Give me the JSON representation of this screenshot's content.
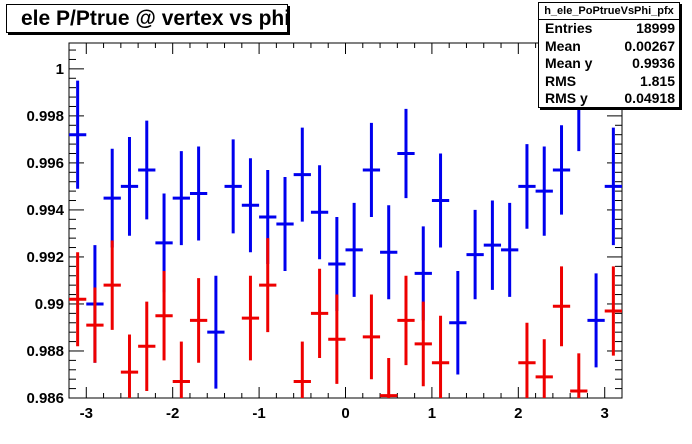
{
  "stats": {
    "name": "h_ele_PoPtrueVsPhi_pfx",
    "rows": [
      {
        "label": "Entries",
        "value": "18999"
      },
      {
        "label": "Mean",
        "value": "0.00267"
      },
      {
        "label": "Mean y",
        "value": "0.9936"
      },
      {
        "label": "RMS",
        "value": "1.815"
      },
      {
        "label": "RMS y",
        "value": "0.04918"
      }
    ]
  },
  "chart_data": {
    "type": "scatter",
    "title": "ele P/Ptrue @ vertex vs phi",
    "xlabel": "",
    "ylabel": "",
    "xlim": [
      -3.2,
      3.2
    ],
    "ylim": [
      0.986,
      1.0011
    ],
    "x_ticks": [
      -3,
      -2,
      -1,
      0,
      1,
      2,
      3
    ],
    "x_tick_labels": [
      "-3",
      "-2",
      "-1",
      "0",
      "1",
      "2",
      "3"
    ],
    "y_ticks": [
      0.986,
      0.988,
      0.99,
      0.992,
      0.994,
      0.996,
      0.998,
      1.0
    ],
    "y_tick_labels": [
      "0.986",
      "0.988",
      "0.99",
      "0.992",
      "0.994",
      "0.996",
      "0.998",
      "1"
    ],
    "grid": false,
    "legend": "none",
    "x_half_width": 0.1,
    "series": [
      {
        "color": "#0000ee",
        "points": [
          {
            "x": -3.1,
            "y": 0.9972,
            "lo": 0.9949,
            "hi": 0.9995
          },
          {
            "x": -2.9,
            "y": 0.99,
            "lo": 0.9875,
            "hi": 0.9925
          },
          {
            "x": -2.7,
            "y": 0.9945,
            "lo": 0.9924,
            "hi": 0.9966
          },
          {
            "x": -2.5,
            "y": 0.995,
            "lo": 0.9929,
            "hi": 0.9971
          },
          {
            "x": -2.3,
            "y": 0.9957,
            "lo": 0.9936,
            "hi": 0.9978
          },
          {
            "x": -2.1,
            "y": 0.9926,
            "lo": 0.9905,
            "hi": 0.9947
          },
          {
            "x": -1.9,
            "y": 0.9945,
            "lo": 0.9925,
            "hi": 0.9965
          },
          {
            "x": -1.7,
            "y": 0.9947,
            "lo": 0.9927,
            "hi": 0.9967
          },
          {
            "x": -1.5,
            "y": 0.9888,
            "lo": 0.9864,
            "hi": 0.9912
          },
          {
            "x": -1.3,
            "y": 0.995,
            "lo": 0.993,
            "hi": 0.997
          },
          {
            "x": -1.1,
            "y": 0.9942,
            "lo": 0.9922,
            "hi": 0.9962
          },
          {
            "x": -0.9,
            "y": 0.9937,
            "lo": 0.9917,
            "hi": 0.9957
          },
          {
            "x": -0.7,
            "y": 0.9934,
            "lo": 0.9914,
            "hi": 0.9954
          },
          {
            "x": -0.5,
            "y": 0.9955,
            "lo": 0.9935,
            "hi": 0.9975
          },
          {
            "x": -0.3,
            "y": 0.9939,
            "lo": 0.9919,
            "hi": 0.9959
          },
          {
            "x": -0.1,
            "y": 0.9917,
            "lo": 0.9897,
            "hi": 0.9937
          },
          {
            "x": 0.1,
            "y": 0.9923,
            "lo": 0.9903,
            "hi": 0.9943
          },
          {
            "x": 0.3,
            "y": 0.9957,
            "lo": 0.9937,
            "hi": 0.9977
          },
          {
            "x": 0.5,
            "y": 0.9922,
            "lo": 0.9902,
            "hi": 0.9942
          },
          {
            "x": 0.7,
            "y": 0.9964,
            "lo": 0.9945,
            "hi": 0.9983
          },
          {
            "x": 0.9,
            "y": 0.9913,
            "lo": 0.9893,
            "hi": 0.9933
          },
          {
            "x": 1.1,
            "y": 0.9944,
            "lo": 0.9924,
            "hi": 0.9964
          },
          {
            "x": 1.3,
            "y": 0.9892,
            "lo": 0.987,
            "hi": 0.9914
          },
          {
            "x": 1.5,
            "y": 0.9921,
            "lo": 0.9902,
            "hi": 0.994
          },
          {
            "x": 1.7,
            "y": 0.9925,
            "lo": 0.9906,
            "hi": 0.9944
          },
          {
            "x": 1.9,
            "y": 0.9923,
            "lo": 0.9903,
            "hi": 0.9943
          },
          {
            "x": 2.1,
            "y": 0.995,
            "lo": 0.9932,
            "hi": 0.9968
          },
          {
            "x": 2.3,
            "y": 0.9948,
            "lo": 0.9929,
            "hi": 0.9967
          },
          {
            "x": 2.5,
            "y": 0.9957,
            "lo": 0.9938,
            "hi": 0.9976
          },
          {
            "x": 2.7,
            "y": 0.9985,
            "lo": 0.9965,
            "hi": 1.0005
          },
          {
            "x": 2.9,
            "y": 0.9893,
            "lo": 0.9873,
            "hi": 0.9913
          },
          {
            "x": 3.1,
            "y": 0.995,
            "lo": 0.9925,
            "hi": 0.9975
          }
        ]
      },
      {
        "color": "#ee0000",
        "points": [
          {
            "x": -3.1,
            "y": 0.9902,
            "lo": 0.9882,
            "hi": 0.9922
          },
          {
            "x": -2.9,
            "y": 0.9891,
            "lo": 0.9875,
            "hi": 0.9907
          },
          {
            "x": -2.7,
            "y": 0.9908,
            "lo": 0.9889,
            "hi": 0.9927
          },
          {
            "x": -2.5,
            "y": 0.9871,
            "lo": 0.9855,
            "hi": 0.9887
          },
          {
            "x": -2.3,
            "y": 0.9882,
            "lo": 0.9863,
            "hi": 0.9901
          },
          {
            "x": -2.1,
            "y": 0.9895,
            "lo": 0.9876,
            "hi": 0.9914
          },
          {
            "x": -1.9,
            "y": 0.9867,
            "lo": 0.985,
            "hi": 0.9884
          },
          {
            "x": -1.7,
            "y": 0.9893,
            "lo": 0.9875,
            "hi": 0.9911
          },
          {
            "x": -1.1,
            "y": 0.9894,
            "lo": 0.9876,
            "hi": 0.9912
          },
          {
            "x": -0.9,
            "y": 0.9908,
            "lo": 0.9888,
            "hi": 0.9928
          },
          {
            "x": -0.5,
            "y": 0.9867,
            "lo": 0.985,
            "hi": 0.9884
          },
          {
            "x": -0.3,
            "y": 0.9896,
            "lo": 0.9877,
            "hi": 0.9915
          },
          {
            "x": -0.1,
            "y": 0.9885,
            "lo": 0.9866,
            "hi": 0.9904
          },
          {
            "x": 0.3,
            "y": 0.9886,
            "lo": 0.9868,
            "hi": 0.9904
          },
          {
            "x": 0.5,
            "y": 0.9861,
            "lo": 0.9845,
            "hi": 0.9877
          },
          {
            "x": 0.7,
            "y": 0.9893,
            "lo": 0.9874,
            "hi": 0.9912
          },
          {
            "x": 0.9,
            "y": 0.9883,
            "lo": 0.9865,
            "hi": 0.9901
          },
          {
            "x": 1.1,
            "y": 0.9875,
            "lo": 0.9855,
            "hi": 0.9895
          },
          {
            "x": 2.1,
            "y": 0.9875,
            "lo": 0.9858,
            "hi": 0.9892
          },
          {
            "x": 2.3,
            "y": 0.9869,
            "lo": 0.9853,
            "hi": 0.9885
          },
          {
            "x": 2.5,
            "y": 0.9899,
            "lo": 0.9882,
            "hi": 0.9916
          },
          {
            "x": 2.7,
            "y": 0.9863,
            "lo": 0.9847,
            "hi": 0.9879
          },
          {
            "x": 3.1,
            "y": 0.9897,
            "lo": 0.9878,
            "hi": 0.9916
          }
        ]
      }
    ]
  }
}
